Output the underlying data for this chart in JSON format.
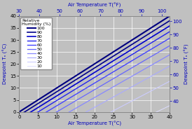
{
  "title_top": "Air Temperature T(°F)",
  "title_bottom": "Air Temperature T(°C)",
  "ylabel_left": "Dewpoint Tₙ (°C)",
  "ylabel_right": "Dewpoint Tₙ (°F)",
  "rh_levels": [
    100,
    90,
    80,
    70,
    60,
    50,
    40,
    30,
    20,
    10
  ],
  "t_c_min": 0,
  "t_c_max": 40,
  "dp_c_min": 0,
  "dp_c_max": 40,
  "bg_color": "#c0c0c0",
  "grid_color": "#aaaaaa",
  "line_colors": {
    "100": "#000080",
    "90": "#00008b",
    "80": "#0000cd",
    "70": "#2222ee",
    "60": "#4444ff",
    "50": "#6666ff",
    "40": "#8888ff",
    "30": "#aaaaff",
    "20": "#ccccff",
    "10": "#ddddff"
  },
  "line_widths": {
    "100": 1.5,
    "90": 1.2,
    "80": 1.2,
    "70": 1.0,
    "60": 1.0,
    "50": 0.9,
    "40": 0.9,
    "30": 0.8,
    "20": 0.8,
    "10": 0.7
  },
  "axis_label_color": "#0000bb",
  "tick_color": "#000000",
  "top_tick_color": "#0000bb",
  "right_tick_color": "#0000bb",
  "legend_title": "Relative\nHumidity (%)",
  "font_size": 5.0,
  "top_f_ticks": [
    30,
    40,
    50,
    60,
    70,
    80,
    90,
    100
  ],
  "bottom_c_ticks": [
    0,
    5,
    10,
    15,
    20,
    25,
    30,
    35,
    40
  ],
  "left_c_ticks": [
    0,
    5,
    10,
    15,
    20,
    25,
    30,
    35,
    40
  ],
  "right_f_ticks": [
    40,
    50,
    60,
    70,
    80,
    90,
    100
  ]
}
